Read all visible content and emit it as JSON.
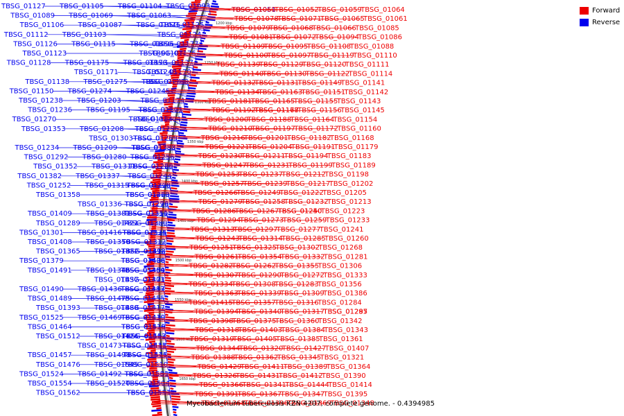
{
  "caption": "Mycobacterium tuberculosis KZN 4207, complete genome. - 0.4394985",
  "legend": [
    {
      "label": "Forward",
      "color": "#ee0000"
    },
    {
      "label": "Reverse",
      "color": "#0000ee"
    }
  ],
  "colors": {
    "forward": "#ee0000",
    "reverse": "#0000ee",
    "backbone": "#555555"
  },
  "ticks": [
    "1200 kbp",
    "1250 kbp",
    "1300 kbp",
    "1350 kbp",
    "1400 kbp",
    "1450 kbp",
    "1500 kbp",
    "1550 kbp",
    "1600 kbp",
    "1650 kbp"
  ],
  "reverse_labels": [
    "TBSG_01127",
    "TBSG_01105",
    "TBSG_01104",
    "TBSG_01093",
    "TBSG_01089",
    "TBSG_01069",
    "TBSG_01063",
    "TBSG_01125",
    "TBSG_01106",
    "TBSG_01087",
    "TBSG_01075",
    "TBSG_01124",
    "TBSG_01112",
    "TBSG_01103",
    "TBSG_01096",
    "TBSG_01177",
    "TBSG_01126",
    "TBSG_01115",
    "TBSG_01107",
    "TBSG_01176",
    "TBSG_01123",
    "TBSG_01175",
    "TBSG_01173",
    "TBSG_01137",
    "TBSG_01128",
    "TBSG_01171",
    "TBSG_01248",
    "TBSG_01170",
    "TBSG_01138",
    "TBSG_01275",
    "TBSG_01246",
    "TBSG_01169",
    "TBSG_01150",
    "TBSG_01274",
    "TBSG_01245",
    "TBSG_01174",
    "TBSG_01238",
    "TBSG_01203",
    "TBSG_01305",
    "TBSG_01271",
    "TBSG_01236",
    "TBSG_01195",
    "TBSG_01184",
    "TBSG_01304",
    "TBSG_01270",
    "TBSG_01208",
    "TBSG_01196",
    "TBSG_01235",
    "TBSG_01353",
    "TBSG_01303",
    "TBSG_01269",
    "TBSG_01255",
    "TBSG_01234",
    "TBSG_01209",
    "TBSG_01383",
    "TBSG_01338",
    "TBSG_01292",
    "TBSG_01280",
    "TBSG_01256",
    "TBSG_01220",
    "TBSG_01352",
    "TBSG_01311",
    "TBSG_01265",
    "TBSG_01244",
    "TBSG_01382",
    "TBSG_01337",
    "TBSG_01300",
    "TBSG_01278",
    "TBSG_01252",
    "TBSG_01315",
    "TBSG_01263",
    "TBSG_01420",
    "TBSG_01358",
    "TBSG_01336",
    "TBSG_01299",
    "TBSG_01276",
    "TBSG_01409",
    "TBSG_01381",
    "TBSG_01351",
    "TBSG_01310",
    "TBSG_01289",
    "TBSG_01421",
    "TBSG_01380",
    "TBSG_01335",
    "TBSG_01301",
    "TBSG_01416",
    "TBSG_01374",
    "TBSG_01312",
    "TBSG_01408",
    "TBSG_01350",
    "TBSG_01418",
    "TBSG_01392",
    "TBSG_01365",
    "TBSG_01322",
    "TBSG_01438",
    "TBSG_01406",
    "TBSG_01379",
    "TBSG_01346",
    "TBSG_01404",
    "TBSG_01359",
    "TBSG_01491",
    "TBSG_01437",
    "TBSG_01401",
    "TBSG_01373",
    "TBSG_01490",
    "TBSG_01436",
    "TBSG_01413",
    "TBSG_01387",
    "TBSG_01489",
    "TBSG_01475",
    "TBSG_01455",
    "TBSG_01417",
    "TBSG_01393",
    "TBSG_01488",
    "TBSG_01439",
    "TBSG_01410",
    "TBSG_01525",
    "TBSG_01469",
    "TBSG_01419",
    "TBSG_01516",
    "TBSG_01464",
    "TBSG_01426",
    "TBSG_01513",
    "TBSG_01462",
    "TBSG_01512",
    "TBSG_01473",
    "TBSG_01448",
    "TBSG_01511",
    "TBSG_01457",
    "TBSG_01498",
    "TBSG_01471",
    "TBSG_01546",
    "TBSG_01476",
    "TBSG_01545",
    "TBSG_01510",
    "TBSG_01561",
    "TBSG_01524",
    "TBSG_01492",
    "TBSG_01539",
    "TBSG_01504",
    "TBSG_01554",
    "TBSG_01520",
    "TBSG_01531",
    "TBSG_01553",
    "TBSG_01562"
  ],
  "forward_labels": [
    "TBSG_01051",
    "TBSG_01052",
    "TBSG_01059",
    "TBSG_01064",
    "TBSG_01060",
    "TBSG_01071",
    "TBSG_01065",
    "TBSG_01061",
    "TBSG_01078",
    "TBSG_01068",
    "TBSG_01066",
    "TBSG_01085",
    "TBSG_01079",
    "TBSG_01072",
    "TBSG_01094",
    "TBSG_01086",
    "TBSG_01081",
    "TBSG_01095",
    "TBSG_01108",
    "TBSG_01088",
    "TBSG_01109",
    "TBSG_01097",
    "TBSG_01119",
    "TBSG_01110",
    "TBSG_01100",
    "TBSG_01129",
    "TBSG_01120",
    "TBSG_01111",
    "TBSG_01139",
    "TBSG_01130",
    "TBSG_01122",
    "TBSG_01114",
    "TBSG_01140",
    "TBSG_01131",
    "TBSG_01149",
    "TBSG_01141",
    "TBSG_01132",
    "TBSG_01163",
    "TBSG_01151",
    "TBSG_01142",
    "TBSG_01134",
    "TBSG_01165",
    "TBSG_01155",
    "TBSG_01143",
    "TBSG_01181",
    "TBSG_01167",
    "TBSG_01156",
    "TBSG_01145",
    "TBSG_01192",
    "TBSG_01178",
    "TBSG_01164",
    "TBSG_01154",
    "TBSG_01200",
    "TBSG_01188",
    "TBSG_01172",
    "TBSG_01160",
    "TBSG_01210",
    "TBSG_01197",
    "TBSG_01182",
    "TBSG_01168",
    "TBSG_01216",
    "TBSG_01201",
    "TBSG_01191",
    "TBSG_01179",
    "TBSG_01221",
    "TBSG_01204",
    "TBSG_01194",
    "TBSG_01183",
    "TBSG_01230",
    "TBSG_01211",
    "TBSG_01199",
    "TBSG_01189",
    "TBSG_01247",
    "TBSG_01231",
    "TBSG_01212",
    "TBSG_01198",
    "TBSG_01253",
    "TBSG_01237",
    "TBSG_01217",
    "TBSG_01202",
    "TBSG_01257",
    "TBSG_01239",
    "TBSG_01222",
    "TBSG_01205",
    "TBSG_01266",
    "TBSG_01249",
    "TBSG_01232",
    "TBSG_01213",
    "TBSG_01279",
    "TBSG_01258",
    "TBSG_01240",
    "TBSG_01223",
    "TBSG_01286",
    "TBSG_01267",
    "TBSG_01250",
    "TBSG_01233",
    "TBSG_01294",
    "TBSG_01273",
    "TBSG_01259",
    "TBSG_01241",
    "TBSG_01313",
    "TBSG_01297",
    "TBSG_01277",
    "TBSG_01260",
    "TBSG_01243",
    "TBSG_01314",
    "TBSG_01285",
    "TBSG_01268",
    "TBSG_01251",
    "TBSG_01325",
    "TBSG_01302",
    "TBSG_01281",
    "TBSG_01261",
    "TBSG_01354",
    "TBSG_01332",
    "TBSG_01306",
    "TBSG_01282",
    "TBSG_01262",
    "TBSG_01355",
    "TBSG_01333",
    "TBSG_01307",
    "TBSG_01290",
    "TBSG_01272",
    "TBSG_01356",
    "TBSG_01334",
    "TBSG_01308",
    "TBSG_01283",
    "TBSG_01386",
    "TBSG_01363",
    "TBSG_01339",
    "TBSG_01309",
    "TBSG_01284",
    "TBSG_01415",
    "TBSG_01357",
    "TBSG_01316",
    "TBSG_01287",
    "TBSG_01394",
    "TBSG_01340",
    "TBSG_01317",
    "TBSG_01295",
    "TBSG_01398",
    "TBSG_01375",
    "TBSG_01360",
    "TBSG_01342",
    "TBSG_01318",
    "TBSG_01403",
    "TBSG_01384",
    "TBSG_01343",
    "TBSG_01319",
    "TBSG_01405",
    "TBSG_01385",
    "TBSG_01361",
    "TBSG_01344",
    "TBSG_01320",
    "TBSG_01427",
    "TBSG_01407",
    "TBSG_01388",
    "TBSG_01362",
    "TBSG_01345",
    "TBSG_01321",
    "TBSG_01429",
    "TBSG_01411",
    "TBSG_01389",
    "TBSG_01364",
    "TBSG_01326",
    "TBSG_01431",
    "TBSG_01412",
    "TBSG_01390",
    "TBSG_01366",
    "TBSG_01341",
    "TBSG_01444",
    "TBSG_01414",
    "TBSG_01391",
    "TBSG_01367",
    "TBSG_01347",
    "TBSG_01395",
    "TBSG_01368",
    "TBSG_01396",
    "TBSG_01369",
    "TBSG_01348"
  ]
}
